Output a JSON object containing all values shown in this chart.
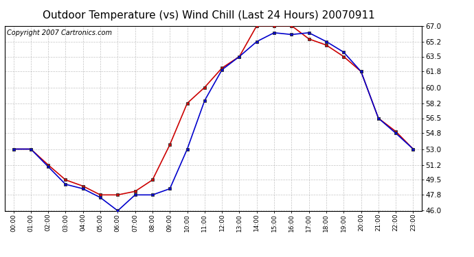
{
  "title": "Outdoor Temperature (vs) Wind Chill (Last 24 Hours) 20070911",
  "copyright": "Copyright 2007 Cartronics.com",
  "hours": [
    "00:00",
    "01:00",
    "02:00",
    "03:00",
    "04:00",
    "05:00",
    "06:00",
    "07:00",
    "08:00",
    "09:00",
    "10:00",
    "11:00",
    "12:00",
    "13:00",
    "14:00",
    "15:00",
    "16:00",
    "17:00",
    "18:00",
    "19:00",
    "20:00",
    "21:00",
    "22:00",
    "23:00"
  ],
  "temp": [
    53.0,
    53.0,
    51.2,
    49.5,
    48.8,
    47.8,
    47.8,
    48.2,
    49.5,
    53.5,
    58.2,
    60.0,
    62.2,
    63.5,
    67.0,
    67.0,
    67.0,
    65.5,
    64.8,
    63.5,
    61.8,
    56.5,
    55.0,
    53.0
  ],
  "windchill": [
    53.0,
    53.0,
    51.0,
    49.0,
    48.5,
    47.5,
    46.0,
    47.8,
    47.8,
    48.5,
    53.0,
    58.5,
    62.0,
    63.5,
    65.2,
    66.2,
    66.0,
    66.2,
    65.2,
    64.0,
    61.8,
    56.5,
    54.8,
    53.0
  ],
  "temp_color": "#cc0000",
  "windchill_color": "#0000cc",
  "ylim": [
    46.0,
    67.0
  ],
  "yticks": [
    46.0,
    47.8,
    49.5,
    51.2,
    53.0,
    54.8,
    56.5,
    58.2,
    60.0,
    61.8,
    63.5,
    65.2,
    67.0
  ],
  "background_color": "#ffffff",
  "grid_color": "#aaaaaa",
  "title_fontsize": 11,
  "copyright_fontsize": 7,
  "marker_color": "#333333"
}
